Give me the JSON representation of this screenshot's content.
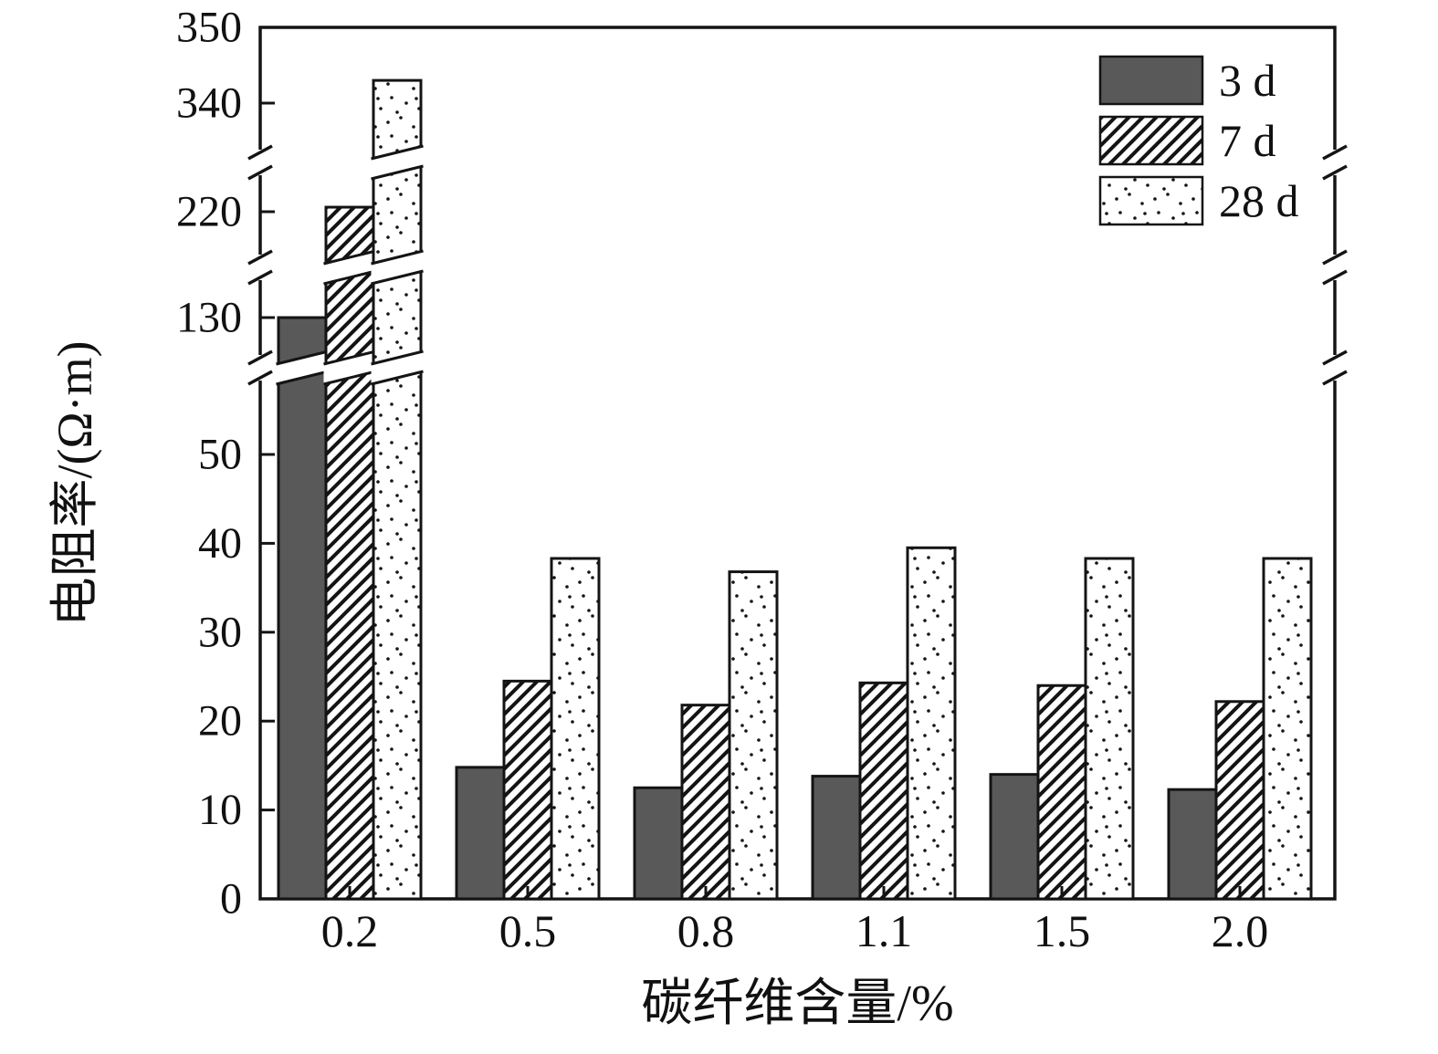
{
  "chart_data": {
    "type": "bar",
    "title": "",
    "xlabel": "碳纤维含量/%",
    "ylabel": "电阻率/(Ω·m)",
    "categories": [
      "0.2",
      "0.5",
      "0.8",
      "1.1",
      "1.5",
      "2.0"
    ],
    "series": [
      {
        "name": "3 d",
        "pattern": "solid",
        "values": [
          130,
          14.8,
          12.5,
          13.8,
          14.0,
          12.3
        ]
      },
      {
        "name": "7 d",
        "pattern": "hatch",
        "values": [
          225,
          24.5,
          21.8,
          24.3,
          24.0,
          22.2
        ]
      },
      {
        "name": "28 d",
        "pattern": "dots",
        "values": [
          343,
          38.3,
          36.8,
          39.5,
          38.3,
          38.3
        ]
      }
    ],
    "y_axis": {
      "ticks": [
        0,
        10,
        20,
        30,
        40,
        50,
        130,
        220,
        340,
        350
      ],
      "broken_axis": true,
      "breaks_between_values": [
        [
          50,
          130
        ],
        [
          130,
          220
        ],
        [
          220,
          340
        ]
      ],
      "range_segments": [
        [
          0,
          50
        ],
        [
          130,
          130
        ],
        [
          220,
          220
        ],
        [
          340,
          350
        ]
      ]
    },
    "x_axis": {
      "label": "碳纤维含量/%"
    },
    "legend": {
      "position": "top-right",
      "entries": [
        "3 d",
        "7 d",
        "28 d"
      ]
    },
    "grid": "off",
    "colors": {
      "bar_solid": "#595959",
      "outline": "#141414",
      "text": "#111111",
      "background": "#ffffff"
    }
  }
}
